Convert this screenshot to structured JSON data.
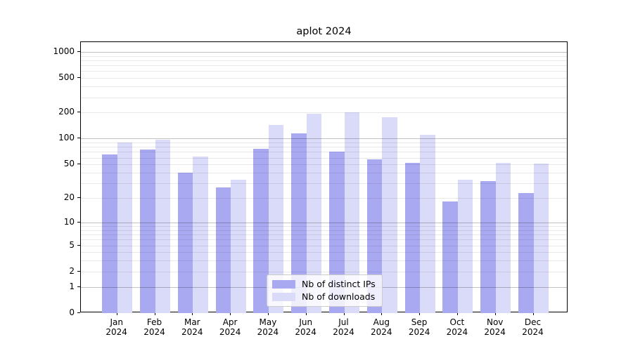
{
  "chart_data": {
    "type": "bar",
    "title": "aplot 2024",
    "categories": [
      "Jan 2024",
      "Feb 2024",
      "Mar 2024",
      "Apr 2024",
      "May 2024",
      "Jun 2024",
      "Jul 2024",
      "Aug 2024",
      "Sep 2024",
      "Oct 2024",
      "Nov 2024",
      "Dec 2024"
    ],
    "series": [
      {
        "name": "Nb of distinct IPs",
        "color": "#a9a9f1",
        "values": [
          65,
          75,
          40,
          27,
          76,
          115,
          71,
          57,
          52,
          18,
          32,
          23
        ]
      },
      {
        "name": "Nb of downloads",
        "color": "#dadaf9",
        "values": [
          90,
          97,
          62,
          33,
          144,
          195,
          203,
          177,
          110,
          33,
          52,
          51
        ]
      }
    ],
    "xlabel": "",
    "ylabel": "",
    "yscale": "log1p",
    "y_ticks": [
      0,
      1,
      2,
      5,
      10,
      20,
      50,
      100,
      200,
      500,
      1000
    ],
    "y_minor_ticks": [
      3,
      4,
      6,
      7,
      8,
      9,
      30,
      40,
      60,
      70,
      80,
      90,
      300,
      400,
      600,
      700,
      800,
      900
    ],
    "y_major_gridlines": [
      1,
      10,
      100,
      1000
    ],
    "ylim": [
      0,
      1300
    ],
    "grid": true,
    "legend_position": "lower center"
  }
}
